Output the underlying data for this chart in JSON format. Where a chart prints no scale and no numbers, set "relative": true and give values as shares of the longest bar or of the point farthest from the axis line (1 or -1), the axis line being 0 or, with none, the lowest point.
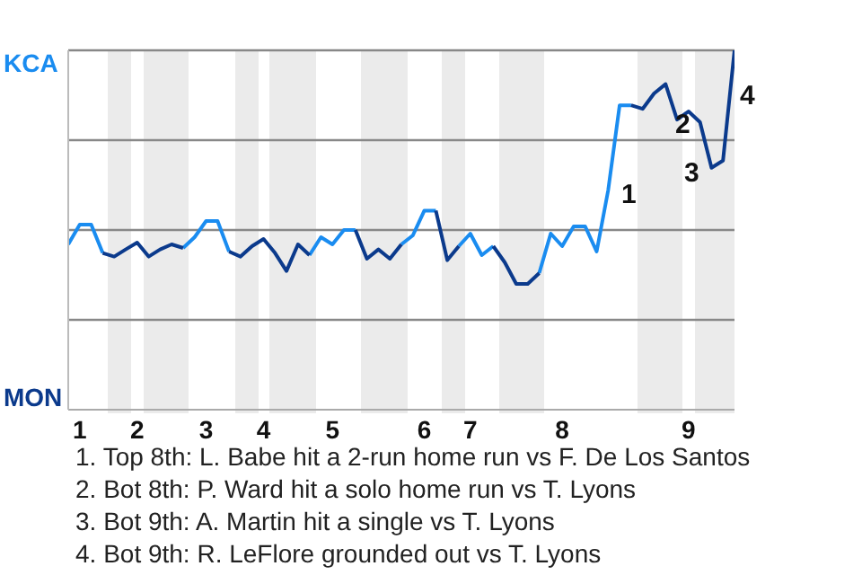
{
  "chart_data": {
    "type": "line",
    "relative": true,
    "categories": [
      null,
      "1",
      null,
      null,
      null,
      null,
      "2",
      null,
      null,
      null,
      null,
      null,
      "3",
      null,
      null,
      null,
      null,
      "4",
      null,
      null,
      null,
      null,
      null,
      "5",
      null,
      null,
      null,
      null,
      null,
      null,
      null,
      "6",
      null,
      null,
      null,
      "7",
      null,
      null,
      null,
      null,
      null,
      null,
      null,
      "8",
      null,
      null,
      null,
      null,
      null,
      null,
      null,
      null,
      null,
      null,
      "9",
      null,
      null,
      null,
      null
    ],
    "series": [
      {
        "color": "#1a8cf0",
        "values": [
          0.46,
          0.515,
          0.515,
          0.436,
          null,
          null,
          null,
          null,
          null,
          null,
          0.45,
          0.48,
          0.525,
          0.525,
          0.44,
          null,
          null,
          null,
          null,
          null,
          null,
          0.43,
          0.48,
          0.46,
          0.5,
          0.5,
          null,
          null,
          null,
          0.46,
          0.485,
          0.554,
          0.554,
          null,
          0.455,
          0.49,
          0.43,
          0.455,
          null,
          null,
          null,
          0.38,
          0.49,
          0.455,
          0.51,
          0.51,
          0.44,
          0.61,
          0.847,
          0.847,
          null,
          null,
          null,
          null,
          null,
          null,
          null,
          null,
          null
        ]
      },
      {
        "color": "#0b3a8c",
        "values": [
          null,
          null,
          null,
          0.436,
          0.426,
          0.446,
          0.465,
          0.426,
          0.446,
          0.46,
          0.45,
          null,
          null,
          null,
          0.44,
          0.426,
          0.455,
          0.475,
          0.436,
          0.386,
          0.46,
          0.43,
          null,
          null,
          null,
          0.5,
          0.42,
          0.446,
          0.42,
          0.46,
          null,
          null,
          0.554,
          0.416,
          0.455,
          null,
          null,
          0.455,
          0.41,
          0.35,
          0.35,
          0.38,
          null,
          null,
          null,
          null,
          null,
          null,
          null,
          0.847,
          0.837,
          0.88,
          0.906,
          0.807,
          0.83,
          0.8,
          0.673,
          0.693,
          1.0
        ]
      }
    ],
    "ref_lines": [
      {
        "axis": "y",
        "value": 1,
        "label": "KCA",
        "color": "#888888"
      },
      {
        "axis": "y",
        "value": 0.75,
        "color": "#888888"
      },
      {
        "axis": "y",
        "value": 0.5,
        "color": "#888888"
      },
      {
        "axis": "y",
        "value": 0.25,
        "color": "#888888"
      }
    ],
    "annotations": [
      "MON",
      "1",
      "2",
      "3",
      "4",
      "1. Top 8th: L. Babe hit a 2-run home run vs F. De Los Santos",
      "2. Bot 8th: P. Ward hit a solo home run vs T. Lyons",
      "3. Bot 9th: A. Martin hit a single vs T. Lyons",
      "4. Bot 9th: R. LeFlore grounded out vs T. Lyons"
    ]
  }
}
